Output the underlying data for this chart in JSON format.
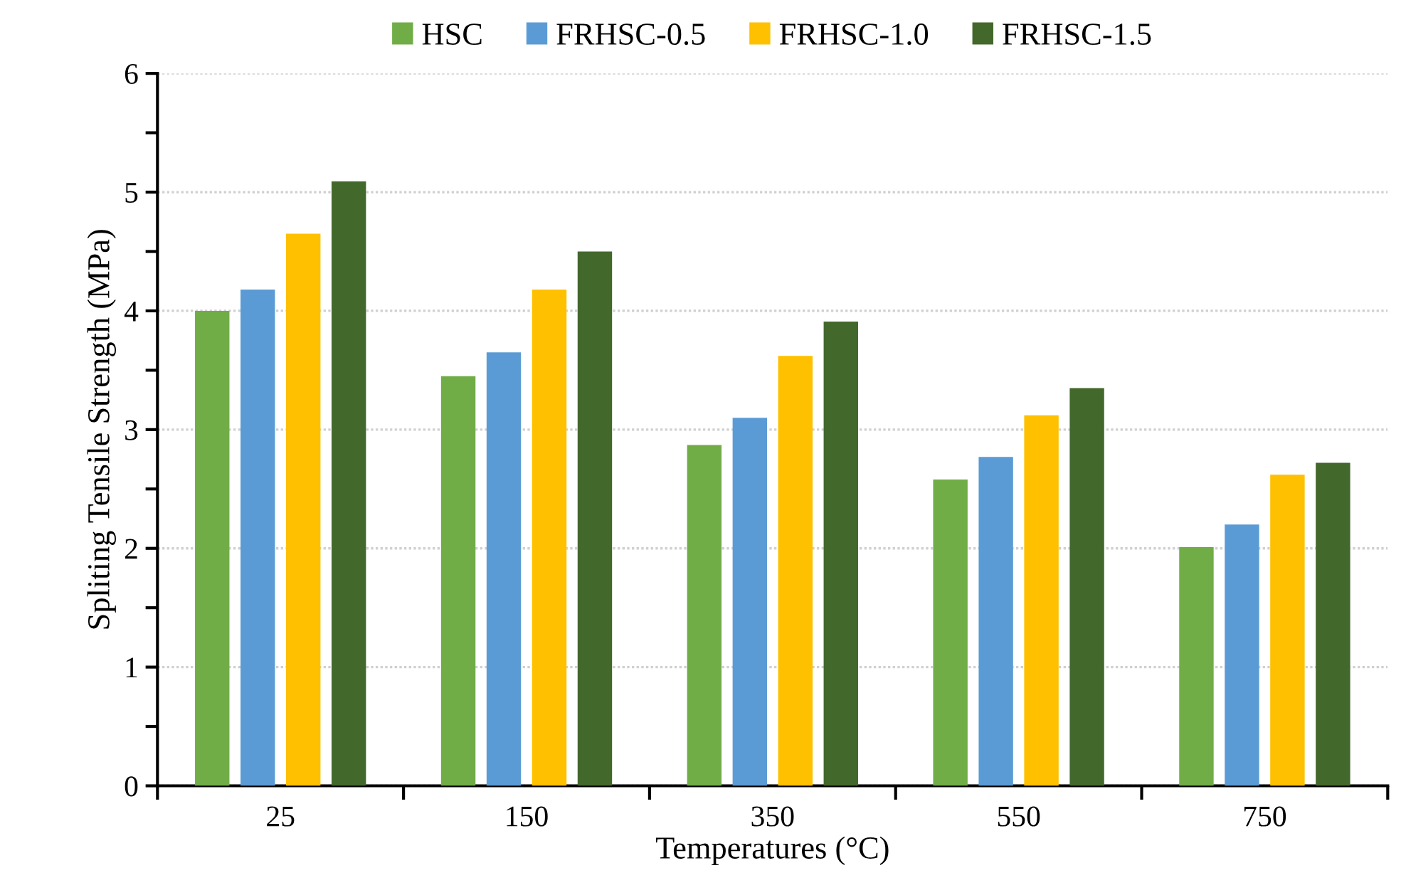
{
  "chart_data": {
    "type": "bar",
    "xlabel": "Temperatures (°C)",
    "ylabel": "Spliting Tensile Strength (MPa)",
    "categories": [
      "25",
      "150",
      "350",
      "550",
      "750"
    ],
    "series": [
      {
        "name": "HSC",
        "color": "#70ad47",
        "values": [
          4.0,
          3.45,
          2.87,
          2.58,
          2.01
        ]
      },
      {
        "name": "FRHSC-0.5",
        "color": "#5b9bd5",
        "values": [
          4.18,
          3.65,
          3.1,
          2.77,
          2.2
        ]
      },
      {
        "name": "FRHSC-1.0",
        "color": "#ffc000",
        "values": [
          4.65,
          4.18,
          3.62,
          3.12,
          2.62
        ]
      },
      {
        "name": "FRHSC-1.5",
        "color": "#43682b",
        "values": [
          5.09,
          4.5,
          3.91,
          3.35,
          2.72
        ]
      }
    ],
    "ylim": [
      0,
      6
    ],
    "yticks": [
      0,
      {
        "value": 0.5,
        "label": null
      },
      1,
      {
        "value": 1.5,
        "label": null
      },
      2,
      {
        "value": 2.5,
        "label": null
      },
      3,
      {
        "value": 3.5,
        "label": null
      },
      4,
      {
        "value": 4.5,
        "label": null
      },
      5,
      {
        "value": 5.5,
        "label": null
      },
      6
    ],
    "grid": "y",
    "legend": "top"
  }
}
